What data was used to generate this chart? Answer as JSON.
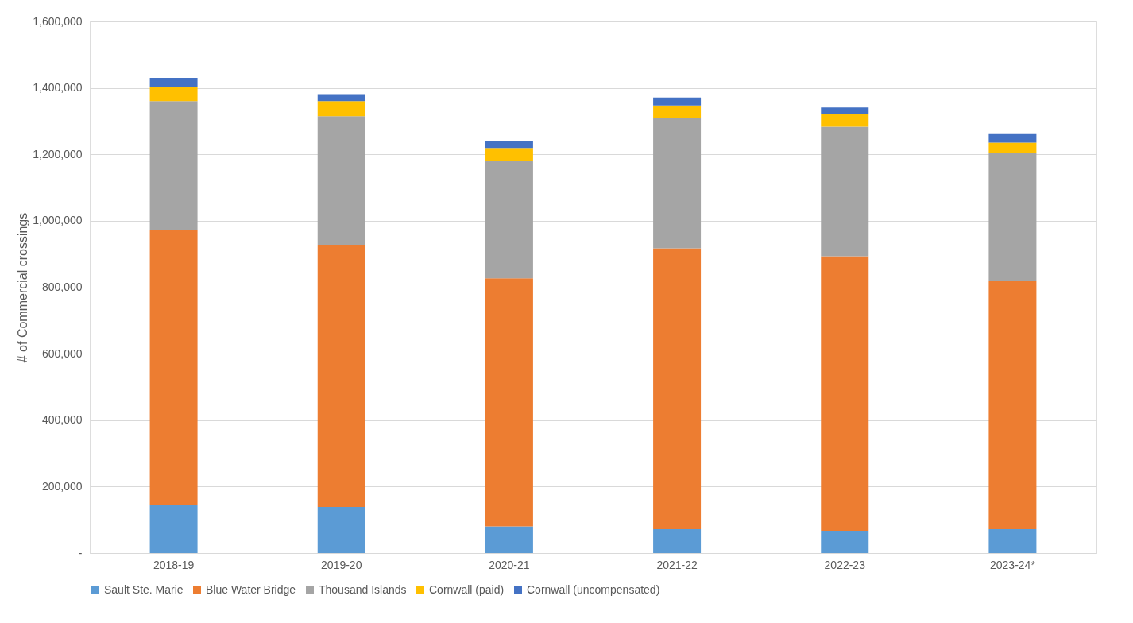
{
  "chart_data": {
    "type": "bar",
    "stacked": true,
    "ylabel": "# of Commercial crossings",
    "categories": [
      "2018-19",
      "2019-20",
      "2020-21",
      "2021-22",
      "2022-23",
      "2023-24*"
    ],
    "series": [
      {
        "name": "Sault Ste. Marie",
        "color": "#5b9bd5",
        "values": [
          144000,
          139000,
          80000,
          72000,
          67000,
          72000
        ]
      },
      {
        "name": "Blue Water Bridge",
        "color": "#ed7d31",
        "values": [
          829000,
          789000,
          747000,
          845000,
          826000,
          747000
        ]
      },
      {
        "name": "Thousand Islands",
        "color": "#a5a5a5",
        "values": [
          387000,
          387000,
          354000,
          392000,
          390000,
          384000
        ]
      },
      {
        "name": "Cornwall (paid)",
        "color": "#ffc000",
        "values": [
          43000,
          45000,
          38000,
          38000,
          37000,
          32000
        ]
      },
      {
        "name": "Cornwall (uncompensated)",
        "color": "#4472c4",
        "values": [
          27000,
          21000,
          21000,
          24000,
          21000,
          26000
        ]
      }
    ],
    "ylim": [
      0,
      1600000
    ],
    "yticks": [
      {
        "value": 0,
        "label": "-"
      },
      {
        "value": 200000,
        "label": "200,000"
      },
      {
        "value": 400000,
        "label": "400,000"
      },
      {
        "value": 600000,
        "label": "600,000"
      },
      {
        "value": 800000,
        "label": "800,000"
      },
      {
        "value": 1000000,
        "label": "1,000,000"
      },
      {
        "value": 1200000,
        "label": "1,200,000"
      },
      {
        "value": 1400000,
        "label": "1,400,000"
      },
      {
        "value": 1600000,
        "label": "1,600,000"
      }
    ],
    "grid": "y",
    "legend": "bottom"
  }
}
